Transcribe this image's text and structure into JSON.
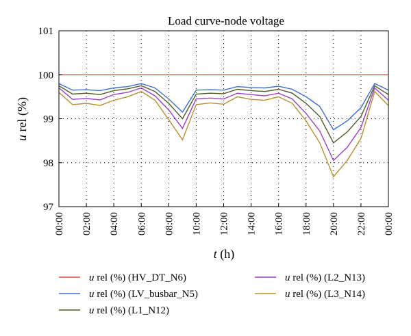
{
  "chart_data": {
    "type": "line",
    "title": "Load curve-node voltage",
    "xlabel": {
      "var": "t",
      "unit": "(h)"
    },
    "ylabel": {
      "var": "u",
      "rest": "rel (%)"
    },
    "ylim": [
      97,
      101
    ],
    "yticks": [
      "97",
      "98",
      "99",
      "100",
      "101"
    ],
    "xlim": [
      0,
      24
    ],
    "xticks": [
      "00:00",
      "02:00",
      "04:00",
      "06:00",
      "08:00",
      "10:00",
      "12:00",
      "14:00",
      "16:00",
      "18:00",
      "20:00",
      "22:00",
      "00:00"
    ],
    "grid": true,
    "legend_position": "bottom",
    "x": [
      0,
      1,
      2,
      3,
      4,
      5,
      6,
      7,
      8,
      9,
      10,
      11,
      12,
      13,
      14,
      15,
      16,
      17,
      18,
      19,
      20,
      21,
      22,
      23,
      24
    ],
    "series": [
      {
        "name_var": "u",
        "name_rest": "rel (%) (HV_DT_N6)",
        "color": "#d9534a",
        "values": [
          100,
          100,
          100,
          100,
          100,
          100,
          100,
          100,
          100,
          100,
          100,
          100,
          100,
          100,
          100,
          100,
          100,
          100,
          100,
          100,
          100,
          100,
          100,
          100,
          100
        ]
      },
      {
        "name_var": "u",
        "name_rest": "rel (%) (LV_busbar_N5)",
        "color": "#3b6fd0",
        "values": [
          99.8,
          99.65,
          99.66,
          99.64,
          99.7,
          99.73,
          99.8,
          99.7,
          99.45,
          99.15,
          99.65,
          99.66,
          99.65,
          99.73,
          99.71,
          99.7,
          99.74,
          99.67,
          99.5,
          99.28,
          98.75,
          98.95,
          99.25,
          99.8,
          99.65
        ]
      },
      {
        "name_var": "u",
        "name_rest": "rel (%) (L1_N12)",
        "color": "#4d5a26",
        "values": [
          99.75,
          99.56,
          99.58,
          99.55,
          99.64,
          99.68,
          99.75,
          99.62,
          99.35,
          99.0,
          99.56,
          99.58,
          99.57,
          99.67,
          99.64,
          99.62,
          99.67,
          99.58,
          99.35,
          99.05,
          98.45,
          98.7,
          99.05,
          99.75,
          99.55
        ]
      },
      {
        "name_var": "u",
        "name_rest": "rel (%) (L2_N13)",
        "color": "#9a40c8",
        "values": [
          99.7,
          99.44,
          99.46,
          99.43,
          99.55,
          99.6,
          99.7,
          99.52,
          99.2,
          98.78,
          99.45,
          99.47,
          99.45,
          99.58,
          99.55,
          99.52,
          99.58,
          99.45,
          99.12,
          98.72,
          98.05,
          98.35,
          98.8,
          99.7,
          99.42
        ]
      },
      {
        "name_var": "u",
        "name_rest": "rel (%) (L3_N14)",
        "color": "#b8902a",
        "values": [
          99.6,
          99.32,
          99.35,
          99.3,
          99.42,
          99.5,
          99.62,
          99.42,
          98.98,
          98.52,
          99.32,
          99.36,
          99.33,
          99.5,
          99.44,
          99.42,
          99.5,
          99.35,
          98.95,
          98.45,
          97.68,
          98.05,
          98.55,
          99.62,
          99.3
        ]
      }
    ]
  }
}
